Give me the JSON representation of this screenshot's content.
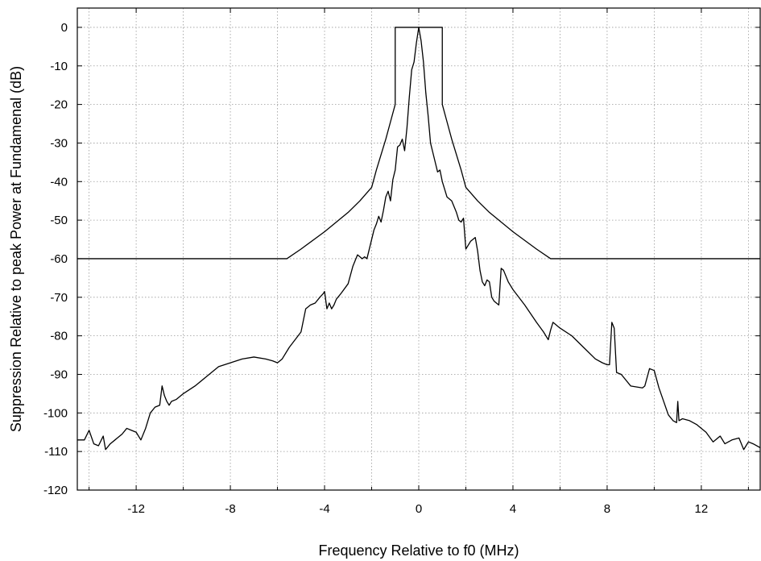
{
  "chart_data": {
    "type": "line",
    "title": "",
    "xlabel": "Frequency Relative to f0 (MHz)",
    "ylabel": "Suppression Relative to peak Power at Fundamenal (dB)",
    "xlim": [
      -14.5,
      14.5
    ],
    "ylim": [
      -120,
      5
    ],
    "x_ticks": [
      -12,
      -8,
      -4,
      0,
      4,
      8,
      12
    ],
    "y_ticks": [
      0,
      -10,
      -20,
      -30,
      -40,
      -50,
      -60,
      -70,
      -80,
      -90,
      -100,
      -110,
      -120
    ],
    "x_tick_labels": [
      "-12",
      "-8",
      "-4",
      "0",
      "4",
      "8",
      "12"
    ],
    "y_tick_labels": [
      "0",
      "-10",
      "-20",
      "-30",
      "-40",
      "-50",
      "-60",
      "-70",
      "-80",
      "-90",
      "-100",
      "-110",
      "-120"
    ],
    "grid": true,
    "series": [
      {
        "x": [
          -14.5,
          -5.6,
          -5.0,
          -4.0,
          -3.0,
          -2.5,
          -2.0,
          -1.8,
          -1.6,
          -1.4,
          -1.2,
          -1.0,
          -1.0,
          -1.0,
          1.0,
          1.0,
          1.0,
          1.2,
          1.4,
          1.6,
          1.8,
          2.0,
          2.5,
          3.0,
          4.0,
          5.0,
          5.6,
          14.5
        ],
        "y": [
          -60,
          -60,
          -57.5,
          -53,
          -48,
          -45,
          -41.5,
          -37,
          -33,
          -29,
          -24.5,
          -20,
          -10,
          0,
          0,
          -10,
          -20,
          -24.5,
          -29,
          -33,
          -37,
          -41.5,
          -45,
          -48,
          -53,
          -57.5,
          -60,
          -60
        ]
      },
      {
        "x": [
          -14.5,
          -14.2,
          -14.0,
          -13.8,
          -13.6,
          -13.4,
          -13.3,
          -13.1,
          -12.9,
          -12.8,
          -12.6,
          -12.4,
          -12.2,
          -12.0,
          -11.8,
          -11.6,
          -11.4,
          -11.2,
          -11.0,
          -10.9,
          -10.8,
          -10.7,
          -10.6,
          -10.5,
          -10.3,
          -10.0,
          -9.5,
          -9.0,
          -8.5,
          -8.0,
          -7.5,
          -7.0,
          -6.5,
          -6.2,
          -6.0,
          -5.8,
          -5.5,
          -5.0,
          -4.8,
          -4.6,
          -4.4,
          -4.2,
          -4.05,
          -4.0,
          -3.9,
          -3.8,
          -3.7,
          -3.6,
          -3.5,
          -3.3,
          -3.0,
          -2.8,
          -2.6,
          -2.4,
          -2.3,
          -2.2,
          -2.0,
          -1.9,
          -1.8,
          -1.7,
          -1.6,
          -1.5,
          -1.4,
          -1.3,
          -1.2,
          -1.1,
          -1.0,
          -0.9,
          -0.8,
          -0.7,
          -0.6,
          -0.5,
          -0.4,
          -0.3,
          -0.2,
          -0.1,
          0.0,
          0.1,
          0.2,
          0.3,
          0.4,
          0.5,
          0.6,
          0.7,
          0.8,
          0.9,
          1.0,
          1.1,
          1.2,
          1.4,
          1.6,
          1.7,
          1.8,
          1.9,
          2.0,
          2.2,
          2.4,
          2.5,
          2.6,
          2.7,
          2.8,
          2.9,
          3.0,
          3.1,
          3.2,
          3.4,
          3.5,
          3.6,
          3.8,
          4.0,
          4.5,
          5.0,
          5.3,
          5.5,
          5.6,
          5.7,
          5.8,
          6.0,
          6.5,
          7.0,
          7.5,
          7.8,
          8.0,
          8.1,
          8.2,
          8.3,
          8.4,
          8.6,
          9.0,
          9.5,
          9.6,
          9.8,
          10.0,
          10.2,
          10.4,
          10.6,
          10.8,
          10.95,
          11.0,
          11.05,
          11.2,
          11.5,
          11.8,
          12.0,
          12.2,
          12.5,
          12.8,
          13.0,
          13.3,
          13.6,
          13.8,
          14.0,
          14.2,
          14.5
        ],
        "y": [
          -107,
          -107,
          -104.5,
          -108,
          -108.5,
          -106,
          -109.5,
          -108,
          -107,
          -106.5,
          -105.5,
          -104,
          -104.5,
          -105,
          -107,
          -104,
          -100,
          -98.5,
          -98,
          -93,
          -95.5,
          -97,
          -98,
          -97,
          -96.5,
          -95,
          -93,
          -90.5,
          -88,
          -87,
          -86,
          -85.5,
          -86,
          -86.5,
          -87,
          -86,
          -83,
          -79,
          -73,
          -72,
          -71.5,
          -70,
          -69,
          -68.5,
          -73,
          -71.5,
          -73,
          -72,
          -70.5,
          -69,
          -66.5,
          -62,
          -59,
          -60,
          -59.5,
          -60,
          -55,
          -52.5,
          -51,
          -49,
          -50.5,
          -47.5,
          -44,
          -42.5,
          -45,
          -39.5,
          -37,
          -31,
          -30.5,
          -29,
          -32,
          -26,
          -18,
          -11,
          -9,
          -4,
          0,
          -3.5,
          -9,
          -17,
          -23,
          -30,
          -32.5,
          -35,
          -37.5,
          -37,
          -40,
          -42,
          -44,
          -45,
          -48,
          -50,
          -50.5,
          -49.5,
          -57.5,
          -55.5,
          -54.5,
          -58,
          -63,
          -66,
          -67,
          -65.5,
          -66,
          -70,
          -71,
          -72,
          -62.5,
          -63,
          -66,
          -68,
          -72,
          -76.5,
          -79,
          -81,
          -78.5,
          -76.5,
          -77,
          -78,
          -80,
          -83,
          -86,
          -87,
          -87.5,
          -87.5,
          -76.5,
          -78,
          -89.5,
          -90,
          -93,
          -93.5,
          -93,
          -88.5,
          -89,
          -93.5,
          -97,
          -100.5,
          -102,
          -102.5,
          -97,
          -102,
          -101.5,
          -102,
          -103,
          -104,
          -105,
          -107.5,
          -106,
          -108,
          -107,
          -106.5,
          -109.5,
          -107.5,
          -108,
          -109
        ]
      }
    ]
  }
}
